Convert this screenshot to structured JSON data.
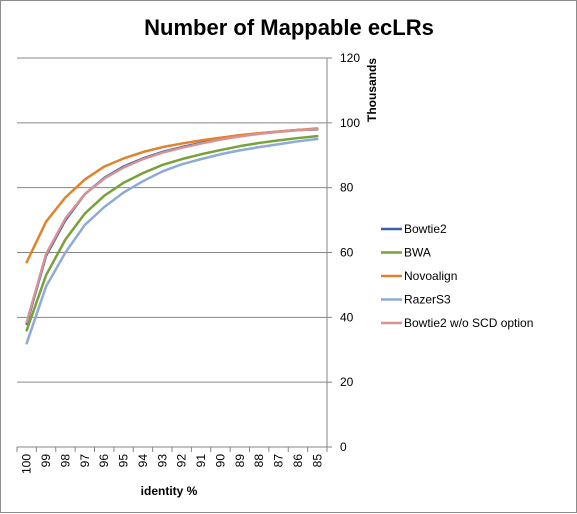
{
  "chart_data": {
    "type": "line",
    "title": "Number of Mappable ecLRs",
    "xlabel": "identity %",
    "ylabel": "Thousands",
    "x": [
      100,
      99,
      98,
      97,
      96,
      95,
      94,
      93,
      92,
      91,
      90,
      89,
      88,
      87,
      86,
      85
    ],
    "x_tick_labels": [
      "100",
      "99",
      "98",
      "97",
      "96",
      "95",
      "94",
      "93",
      "92",
      "91",
      "90",
      "89",
      "88",
      "87",
      "86",
      "85"
    ],
    "ylim": [
      0,
      120
    ],
    "y_ticks": [
      0,
      20,
      40,
      60,
      80,
      100,
      120
    ],
    "y_tick_labels": [
      "0",
      "20",
      "40",
      "60",
      "80",
      "100",
      "120"
    ],
    "y_axis_position": "right",
    "grid": "horizontal",
    "legend_position": "right",
    "series": [
      {
        "name": "Bowtie2",
        "color": "#3a5ea8",
        "values": [
          38,
          59,
          70,
          78,
          83,
          86.5,
          89,
          91,
          92.5,
          93.8,
          95,
          96,
          96.8,
          97.3,
          97.8,
          98
        ]
      },
      {
        "name": "BWA",
        "color": "#77a23a",
        "values": [
          36,
          53,
          64,
          72,
          77.5,
          81.5,
          84.5,
          87,
          88.8,
          90.3,
          91.6,
          92.8,
          93.8,
          94.6,
          95.3,
          95.9
        ]
      },
      {
        "name": "Novoalign",
        "color": "#e3822c",
        "values": [
          57,
          69.5,
          77,
          82.5,
          86.5,
          89,
          91,
          92.5,
          93.6,
          94.6,
          95.4,
          96.2,
          96.8,
          97.3,
          97.8,
          98.3
        ]
      },
      {
        "name": "RazerS3",
        "color": "#8eaad8",
        "values": [
          32,
          49.5,
          60,
          68.5,
          74,
          78.5,
          82,
          85,
          87.2,
          88.8,
          90.3,
          91.5,
          92.5,
          93.4,
          94.3,
          95
        ]
      },
      {
        "name": "Bowtie2 w/o SCD option",
        "color": "#d99294",
        "values": [
          38.5,
          59.5,
          70.5,
          78,
          82.8,
          86.2,
          88.8,
          90.8,
          92.3,
          93.6,
          94.8,
          95.8,
          96.6,
          97.2,
          97.7,
          98.1
        ]
      }
    ]
  }
}
